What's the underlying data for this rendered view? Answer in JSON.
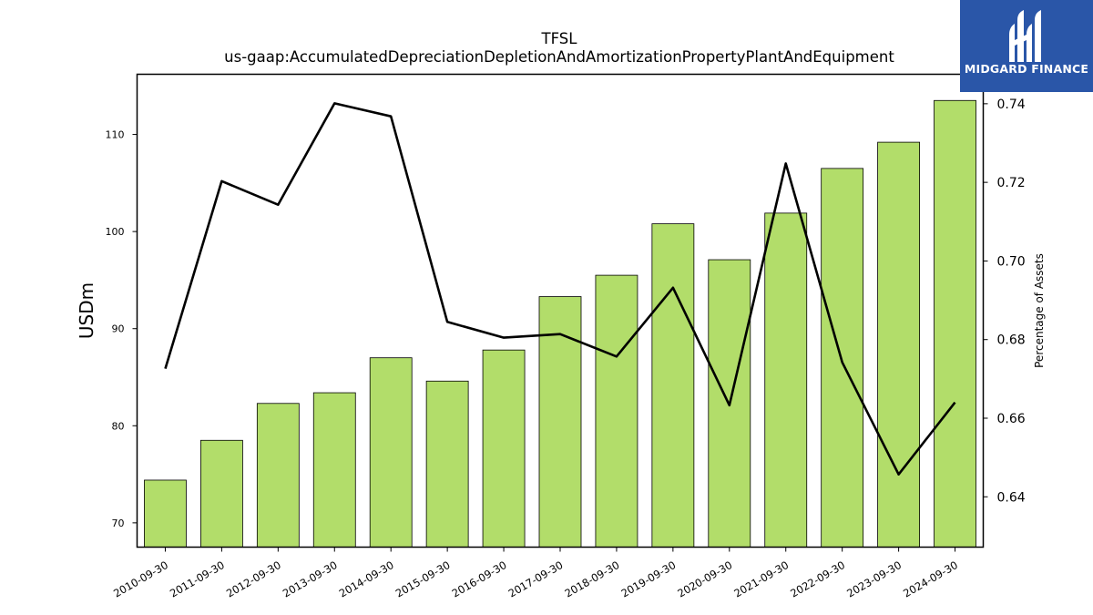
{
  "chart_data": {
    "type": "bar",
    "title": "TFSL",
    "subtitle": "us-gaap:AccumulatedDepreciationDepletionAndAmortizationPropertyPlantAndEquipment",
    "ylabel": "USDm",
    "y2label": "Percentage of Assets",
    "categories": [
      "2010-09-30",
      "2011-09-30",
      "2012-09-30",
      "2013-09-30",
      "2014-09-30",
      "2015-09-30",
      "2016-09-30",
      "2017-09-30",
      "2018-09-30",
      "2019-09-30",
      "2020-09-30",
      "2021-09-30",
      "2022-09-30",
      "2023-09-30",
      "2024-09-30"
    ],
    "series": [
      {
        "type": "bar",
        "axis": "left",
        "color": "#b2dd6a",
        "values": [
          74.4,
          78.5,
          82.3,
          83.4,
          87.0,
          84.6,
          87.8,
          93.3,
          95.5,
          100.8,
          97.1,
          101.9,
          106.5,
          109.2,
          113.5
        ]
      },
      {
        "type": "line",
        "axis": "right",
        "color": "#000000",
        "values": [
          0.6726,
          0.7203,
          0.7143,
          0.7401,
          0.7368,
          0.6845,
          0.6805,
          0.6814,
          0.6757,
          0.6932,
          0.6633,
          0.7248,
          0.6742,
          0.6457,
          0.664
        ]
      }
    ],
    "ylim": [
      67.5,
      116.2
    ],
    "y2lim": [
      0.6272,
      0.7475
    ],
    "yticks": [
      70,
      80,
      90,
      100,
      110
    ],
    "y2ticks": [
      0.64,
      0.66,
      0.68,
      0.7,
      0.72,
      0.74
    ],
    "grid": false,
    "legend": "none"
  },
  "logo": {
    "text": "MIDGARD FINANCE",
    "color": "#2a56a8"
  }
}
